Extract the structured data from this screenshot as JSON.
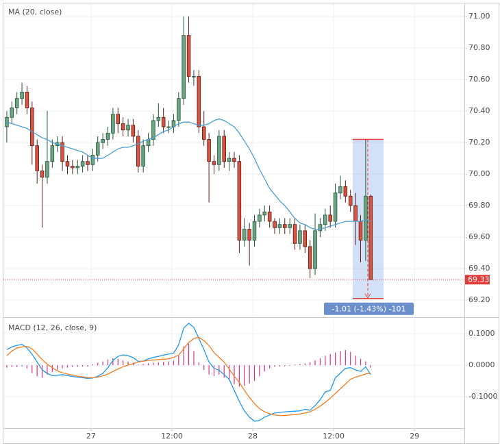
{
  "chart_data": [
    {
      "type": "candlestick",
      "x": [
        -12.5,
        -11.75,
        -11,
        -10.25,
        -9.5,
        -8.75,
        -8,
        -7.25,
        -6.5,
        -5.75,
        -5,
        -4.25,
        -3.5,
        -2.75,
        -2,
        -1.25,
        -0.5,
        0.25,
        1,
        1.75,
        2.5,
        3.25,
        4,
        4.75,
        5.5,
        6.25,
        7,
        7.75,
        8.5,
        9.25,
        10,
        10.75,
        11.5,
        12.25,
        13,
        13.75,
        14.5,
        15.25,
        16,
        16.75,
        17.5,
        18.25,
        19,
        19.75,
        20.5,
        21.25,
        22,
        22.75,
        23.5,
        24.25,
        25,
        25.75,
        26.5,
        27.25,
        28,
        28.75,
        29.5,
        30.25,
        31,
        31.75,
        32.5,
        33.25,
        34,
        34.75,
        35.5,
        36.25,
        37,
        37.75,
        38.5,
        39.25,
        40,
        40.75,
        41.5
      ],
      "open": [
        70.3,
        70.36,
        70.42,
        70.48,
        70.52,
        70.42,
        70.18,
        70.02,
        69.98,
        70.08,
        70.18,
        70.2,
        70.08,
        70.05,
        70.04,
        70.05,
        70.08,
        70.06,
        70.12,
        70.2,
        70.22,
        70.26,
        70.38,
        70.32,
        70.28,
        70.31,
        70.24,
        70.05,
        70.18,
        70.22,
        70.34,
        70.36,
        70.3,
        70.3,
        70.34,
        70.48,
        70.88,
        70.62,
        70.62,
        70.3,
        70.22,
        70.08,
        70.06,
        70.24,
        70.08,
        70.1,
        70.08,
        69.58,
        69.65,
        69.58,
        69.7,
        69.74,
        69.76,
        69.7,
        69.66,
        69.68,
        69.66,
        69.68,
        69.56,
        69.64,
        69.54,
        69.4,
        69.64,
        69.68,
        69.74,
        69.7,
        69.88,
        69.92,
        69.86,
        69.8,
        69.7,
        69.58,
        69.86
      ],
      "high": [
        70.4,
        70.46,
        70.52,
        70.58,
        70.56,
        70.46,
        70.22,
        70.06,
        70.4,
        70.22,
        70.24,
        70.24,
        70.12,
        70.09,
        70.09,
        70.12,
        70.12,
        70.16,
        70.24,
        70.26,
        70.3,
        70.42,
        70.42,
        70.36,
        70.35,
        70.35,
        70.28,
        70.22,
        70.26,
        70.38,
        70.45,
        70.42,
        70.34,
        70.38,
        70.52,
        71.0,
        71.0,
        70.66,
        70.66,
        70.4,
        70.26,
        70.12,
        70.28,
        70.28,
        70.14,
        70.14,
        70.12,
        69.72,
        69.69,
        69.74,
        69.78,
        69.8,
        69.8,
        69.72,
        69.72,
        69.72,
        69.72,
        69.72,
        69.68,
        69.68,
        69.58,
        69.75,
        69.72,
        69.78,
        69.8,
        69.94,
        69.99,
        69.96,
        69.9,
        69.88,
        69.74,
        70.22,
        69.87
      ],
      "low": [
        70.2,
        70.32,
        70.38,
        70.44,
        70.38,
        70.06,
        69.94,
        69.66,
        69.94,
        70.04,
        70.14,
        70.02,
        70.0,
        70.0,
        70.0,
        70.01,
        70.02,
        70.02,
        70.08,
        70.16,
        70.18,
        70.22,
        70.26,
        70.24,
        70.24,
        70.2,
        70.01,
        70.01,
        70.14,
        70.18,
        70.3,
        70.26,
        70.26,
        70.26,
        70.3,
        70.44,
        70.58,
        70.56,
        70.26,
        70.18,
        69.82,
        70.0,
        70.02,
        70.04,
        70.02,
        70.04,
        69.5,
        69.54,
        69.42,
        69.54,
        69.66,
        69.7,
        69.66,
        69.62,
        69.62,
        69.62,
        69.62,
        69.52,
        69.52,
        69.5,
        69.34,
        69.36,
        69.6,
        69.64,
        69.66,
        69.66,
        69.84,
        69.82,
        69.76,
        69.55,
        69.44,
        69.45,
        69.33
      ],
      "close": [
        70.36,
        70.42,
        70.48,
        70.52,
        70.42,
        70.18,
        70.02,
        69.98,
        70.08,
        70.18,
        70.2,
        70.08,
        70.05,
        70.04,
        70.05,
        70.08,
        70.06,
        70.12,
        70.2,
        70.22,
        70.26,
        70.38,
        70.32,
        70.28,
        70.31,
        70.24,
        70.05,
        70.18,
        70.22,
        70.34,
        70.36,
        70.3,
        70.3,
        70.34,
        70.48,
        70.88,
        70.62,
        70.62,
        70.3,
        70.22,
        70.08,
        70.06,
        70.24,
        70.08,
        70.1,
        70.08,
        69.58,
        69.65,
        69.58,
        69.7,
        69.74,
        69.76,
        69.7,
        69.66,
        69.68,
        69.66,
        69.68,
        69.56,
        69.64,
        69.54,
        69.4,
        69.64,
        69.68,
        69.74,
        69.7,
        69.88,
        69.92,
        69.86,
        69.8,
        69.7,
        69.58,
        69.86,
        69.33
      ],
      "up_color": "#6ba583",
      "down_color": "#d75442",
      "series": [
        {
          "name": "MA (20, close)",
          "color": "#4a9fd4",
          "values": [
            70.33,
            70.32,
            70.31,
            70.3,
            70.29,
            70.27,
            70.25,
            70.23,
            70.22,
            70.2,
            70.19,
            70.18,
            70.17,
            70.16,
            70.15,
            70.14,
            70.12,
            70.1,
            70.1,
            70.1,
            70.12,
            70.14,
            70.16,
            70.17,
            70.17,
            70.18,
            70.19,
            70.21,
            70.22,
            70.23,
            70.25,
            70.27,
            70.28,
            70.3,
            70.32,
            70.33,
            70.33,
            70.32,
            70.31,
            70.31,
            70.32,
            70.34,
            70.35,
            70.34,
            70.32,
            70.3,
            70.26,
            70.21,
            70.16,
            70.1,
            70.03,
            69.97,
            69.91,
            69.87,
            69.83,
            69.8,
            69.76,
            69.72,
            69.69,
            69.68,
            69.66,
            69.65,
            69.65,
            69.66,
            69.67,
            69.68,
            69.69,
            69.7,
            69.7,
            69.7,
            69.7,
            69.71,
            69.7
          ]
        }
      ],
      "xlim": [
        -13,
        55.4
      ],
      "ylim": [
        69.096,
        71.083
      ],
      "yticks": [
        {
          "value": 69.2,
          "label": "69.20"
        },
        {
          "value": 69.4,
          "label": "69.40"
        },
        {
          "value": 69.6,
          "label": "69.60"
        },
        {
          "value": 69.8,
          "label": "69.80"
        },
        {
          "value": 70.0,
          "label": "70.00"
        },
        {
          "value": 70.2,
          "label": "70.20"
        },
        {
          "value": 70.4,
          "label": "70.40"
        },
        {
          "value": 70.6,
          "label": "70.60"
        },
        {
          "value": 70.8,
          "label": "70.80"
        },
        {
          "value": 71.0,
          "label": "71.00"
        }
      ],
      "grid": true,
      "last_price": 69.33,
      "last_price_color": "#e03c3c",
      "measure": {
        "from": 70.22,
        "to": 69.21,
        "label": "-1.01 (-1.43%) -101"
      }
    },
    {
      "type": "macd",
      "title": "MACD (12, 26, close, 9)",
      "series": [
        {
          "color": "#2196f3",
          "values": [
            0.05,
            0.058,
            0.063,
            0.066,
            0.055,
            0.035,
            0.01,
            -0.015,
            -0.026,
            -0.033,
            -0.032,
            -0.03,
            -0.033,
            -0.036,
            -0.038,
            -0.04,
            -0.042,
            -0.041,
            -0.035,
            -0.026,
            -0.008,
            0.015,
            0.028,
            0.033,
            0.03,
            0.024,
            0.012,
            0.013,
            0.02,
            0.025,
            0.028,
            0.032,
            0.035,
            0.038,
            0.065,
            0.118,
            0.133,
            0.12,
            0.085,
            0.05,
            0.01,
            -0.01,
            -0.016,
            -0.03,
            -0.045,
            -0.08,
            -0.115,
            -0.145,
            -0.165,
            -0.178,
            -0.175,
            -0.165,
            -0.158,
            -0.152,
            -0.15,
            -0.148,
            -0.147,
            -0.146,
            -0.145,
            -0.14,
            -0.143,
            -0.128,
            -0.11,
            -0.085,
            -0.08,
            -0.04,
            -0.025,
            -0.01,
            -0.008,
            -0.015,
            -0.02,
            -0.005,
            -0.03
          ]
        },
        {
          "color": "#f57c1f",
          "values": [
            0.03,
            0.045,
            0.055,
            0.058,
            0.06,
            0.052,
            0.035,
            0.018,
            0.003,
            -0.008,
            -0.018,
            -0.024,
            -0.028,
            -0.032,
            -0.035,
            -0.037,
            -0.039,
            -0.04,
            -0.038,
            -0.034,
            -0.028,
            -0.02,
            -0.012,
            -0.005,
            0.0,
            0.005,
            0.01,
            0.013,
            0.015,
            0.016,
            0.018,
            0.019,
            0.02,
            0.025,
            0.032,
            0.052,
            0.072,
            0.085,
            0.088,
            0.078,
            0.062,
            0.04,
            0.025,
            0.01,
            -0.012,
            -0.035,
            -0.055,
            -0.08,
            -0.102,
            -0.122,
            -0.138,
            -0.148,
            -0.154,
            -0.158,
            -0.16,
            -0.16,
            -0.158,
            -0.156,
            -0.155,
            -0.152,
            -0.148,
            -0.14,
            -0.13,
            -0.118,
            -0.105,
            -0.09,
            -0.075,
            -0.06,
            -0.045,
            -0.038,
            -0.033,
            -0.028,
            -0.025
          ]
        },
        {
          "color": "#d6308c",
          "histogram": true,
          "values": [
            -0.008,
            -0.006,
            -0.006,
            -0.004,
            -0.01,
            -0.025,
            -0.035,
            -0.04,
            -0.03,
            -0.022,
            -0.015,
            -0.01,
            -0.008,
            -0.006,
            -0.005,
            -0.004,
            -0.004,
            0.003,
            0.008,
            0.012,
            0.018,
            0.022,
            0.02,
            0.016,
            0.012,
            0.008,
            0.002,
            0.004,
            0.006,
            0.008,
            0.009,
            0.01,
            0.012,
            0.014,
            0.03,
            0.06,
            0.068,
            0.045,
            0.01,
            -0.015,
            -0.03,
            -0.035,
            -0.03,
            -0.04,
            -0.045,
            -0.06,
            -0.068,
            -0.065,
            -0.058,
            -0.05,
            -0.035,
            -0.02,
            -0.01,
            -0.005,
            -0.004,
            -0.003,
            -0.002,
            0.002,
            0.004,
            0.006,
            0.01,
            0.015,
            0.022,
            0.03,
            0.035,
            0.04,
            0.045,
            0.048,
            0.042,
            0.03,
            0.02,
            0.012,
            -0.008
          ]
        }
      ],
      "ylim": [
        -0.2,
        0.148
      ],
      "yticks": [
        {
          "value": 0.1,
          "label": "0.1000"
        },
        {
          "value": 0,
          "label": "0.0000"
        },
        {
          "value": -0.1,
          "label": "-0.1000"
        }
      ],
      "xticks": [
        {
          "value": 0,
          "label": "27"
        },
        {
          "value": 12,
          "label": "12:00"
        },
        {
          "value": 24,
          "label": "28"
        },
        {
          "value": 36,
          "label": "12:00"
        },
        {
          "value": 48,
          "label": "29"
        }
      ],
      "grid": true
    }
  ]
}
